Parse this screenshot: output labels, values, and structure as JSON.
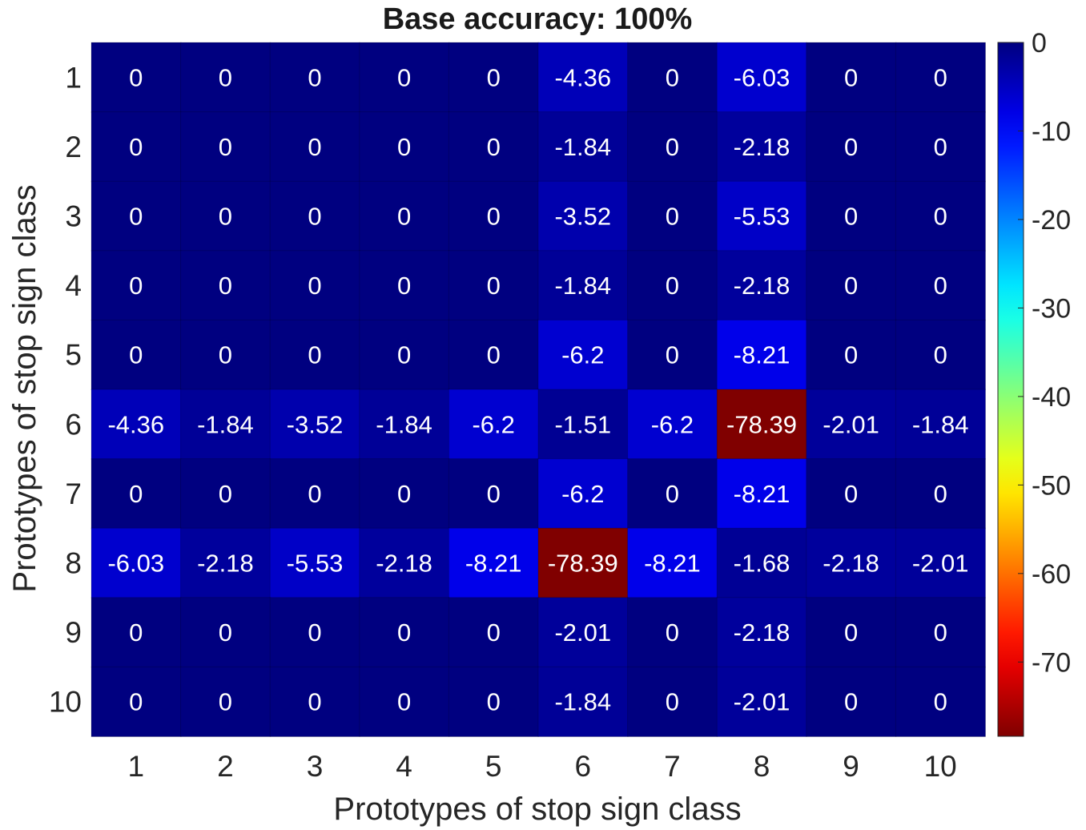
{
  "chart_data": {
    "type": "heatmap",
    "title": "Base accuracy: 100%",
    "xlabel": "Prototypes of stop sign class",
    "ylabel": "Prototypes of stop sign class",
    "x_categories": [
      "1",
      "2",
      "3",
      "4",
      "5",
      "6",
      "7",
      "8",
      "9",
      "10"
    ],
    "y_categories": [
      "1",
      "2",
      "3",
      "4",
      "5",
      "6",
      "7",
      "8",
      "9",
      "10"
    ],
    "values": [
      [
        0,
        0,
        0,
        0,
        0,
        -4.36,
        0,
        -6.03,
        0,
        0
      ],
      [
        0,
        0,
        0,
        0,
        0,
        -1.84,
        0,
        -2.18,
        0,
        0
      ],
      [
        0,
        0,
        0,
        0,
        0,
        -3.52,
        0,
        -5.53,
        0,
        0
      ],
      [
        0,
        0,
        0,
        0,
        0,
        -1.84,
        0,
        -2.18,
        0,
        0
      ],
      [
        0,
        0,
        0,
        0,
        0,
        -6.2,
        0,
        -8.21,
        0,
        0
      ],
      [
        -4.36,
        -1.84,
        -3.52,
        -1.84,
        -6.2,
        -1.51,
        -6.2,
        -78.39,
        -2.01,
        -1.84
      ],
      [
        0,
        0,
        0,
        0,
        0,
        -6.2,
        0,
        -8.21,
        0,
        0
      ],
      [
        -6.03,
        -2.18,
        -5.53,
        -2.18,
        -8.21,
        -78.39,
        -8.21,
        -1.68,
        -2.18,
        -2.01
      ],
      [
        0,
        0,
        0,
        0,
        0,
        -2.01,
        0,
        -2.18,
        0,
        0
      ],
      [
        0,
        0,
        0,
        0,
        0,
        -1.84,
        0,
        -2.01,
        0,
        0
      ]
    ],
    "cell_labels": [
      [
        "0",
        "0",
        "0",
        "0",
        "0",
        "-4.36",
        "0",
        "-6.03",
        "0",
        "0"
      ],
      [
        "0",
        "0",
        "0",
        "0",
        "0",
        "-1.84",
        "0",
        "-2.18",
        "0",
        "0"
      ],
      [
        "0",
        "0",
        "0",
        "0",
        "0",
        "-3.52",
        "0",
        "-5.53",
        "0",
        "0"
      ],
      [
        "0",
        "0",
        "0",
        "0",
        "0",
        "-1.84",
        "0",
        "-2.18",
        "0",
        "0"
      ],
      [
        "0",
        "0",
        "0",
        "0",
        "0",
        "-6.2",
        "0",
        "-8.21",
        "0",
        "0"
      ],
      [
        "-4.36",
        "-1.84",
        "-3.52",
        "-1.84",
        "-6.2",
        "-1.51",
        "-6.2",
        "-78.39",
        "-2.01",
        "-1.84"
      ],
      [
        "0",
        "0",
        "0",
        "0",
        "0",
        "-6.2",
        "0",
        "-8.21",
        "0",
        "0"
      ],
      [
        "-6.03",
        "-2.18",
        "-5.53",
        "-2.18",
        "-8.21",
        "-78.39",
        "-8.21",
        "-1.68",
        "-2.18",
        "-2.01"
      ],
      [
        "0",
        "0",
        "0",
        "0",
        "0",
        "-2.01",
        "0",
        "-2.18",
        "0",
        "0"
      ],
      [
        "0",
        "0",
        "0",
        "0",
        "0",
        "-1.84",
        "0",
        "-2.01",
        "0",
        "0"
      ]
    ],
    "colormap": "jet",
    "color_range": [
      -78.39,
      0
    ],
    "colorbar": {
      "ticks": [
        0,
        -10,
        -20,
        -30,
        -40,
        -50,
        -60,
        -70
      ],
      "tick_labels": [
        "0",
        "-10",
        "-20",
        "-30",
        "-40",
        "-50",
        "-60",
        "-70"
      ],
      "placement": "right"
    },
    "grid": false,
    "cell_text_color": "#ffffff"
  }
}
